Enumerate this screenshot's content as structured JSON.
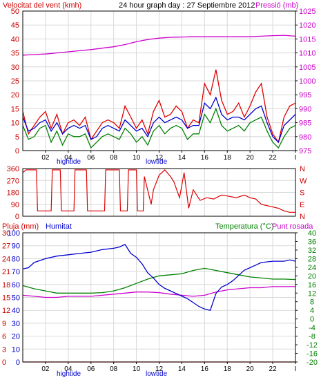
{
  "chart_data": [
    {
      "type": "line",
      "title": "24 hour graph day : 27 Septiembre 2012",
      "left_label": "Velocitat del vent (kmh)",
      "right_label": "Pressió (mb)",
      "x_ticks": [
        "02",
        "04",
        "06",
        "08",
        "10",
        "12",
        "14",
        "16",
        "18",
        "20",
        "22",
        "I"
      ],
      "tide_labels": [
        "hightide",
        "lowtide"
      ],
      "left_ticks": [
        "0",
        "5",
        "10",
        "15",
        "20",
        "25",
        "30",
        "35",
        "40",
        "45",
        "50"
      ],
      "right_ticks": [
        "975",
        "980",
        "985",
        "990",
        "995",
        "1000",
        "1005",
        "1010",
        "1015",
        "1020",
        "1025"
      ],
      "ylim_left": [
        0,
        50
      ],
      "ylim_right": [
        975,
        1025
      ],
      "grid": true,
      "series": [
        {
          "axis": "right",
          "color": "#cc00cc",
          "x": [
            0,
            1,
            2,
            3,
            4,
            5,
            6,
            7,
            8,
            9,
            10,
            11,
            12,
            13,
            14,
            15,
            16,
            17,
            18,
            19,
            20,
            21,
            22,
            23,
            24
          ],
          "values": [
            1009.2,
            1009.4,
            1009.6,
            1010.0,
            1010.4,
            1010.8,
            1011.2,
            1011.7,
            1012.2,
            1013.0,
            1014.0,
            1014.8,
            1015.3,
            1015.6,
            1015.7,
            1015.8,
            1015.8,
            1015.8,
            1015.8,
            1015.8,
            1015.8,
            1016.0,
            1016.2,
            1016.3,
            1016.0
          ]
        },
        {
          "axis": "left",
          "color": "#dd0000",
          "x": [
            0,
            0.5,
            1,
            1.5,
            2,
            2.5,
            3,
            3.5,
            4,
            4.5,
            5,
            5.5,
            6,
            6.5,
            7,
            7.5,
            8,
            8.5,
            9,
            9.5,
            10,
            10.5,
            11,
            11.5,
            12,
            12.5,
            13,
            13.5,
            14,
            14.5,
            15,
            15.5,
            16,
            16.5,
            17,
            17.5,
            18,
            18.5,
            19,
            19.5,
            20,
            20.5,
            21,
            21.5,
            22,
            22.5,
            23,
            23.5,
            24
          ],
          "values": [
            14,
            6,
            9,
            12,
            14,
            8,
            13,
            6,
            10,
            11,
            9,
            12,
            4,
            7,
            10,
            11,
            10,
            8,
            16,
            12,
            8,
            11,
            6,
            14,
            18,
            12,
            13,
            16,
            14,
            8,
            11,
            10,
            24,
            20,
            29,
            18,
            13,
            14,
            17,
            12,
            16,
            21,
            24,
            12,
            6,
            3,
            12,
            16,
            17
          ]
        },
        {
          "axis": "left",
          "color": "#0000cc",
          "x": [
            0,
            0.5,
            1,
            1.5,
            2,
            2.5,
            3,
            3.5,
            4,
            4.5,
            5,
            5.5,
            6,
            6.5,
            7,
            7.5,
            8,
            8.5,
            9,
            9.5,
            10,
            10.5,
            11,
            11.5,
            12,
            12.5,
            13,
            13.5,
            14,
            14.5,
            15,
            15.5,
            16,
            16.5,
            17,
            17.5,
            18,
            18.5,
            19,
            19.5,
            20,
            20.5,
            21,
            21.5,
            22,
            22.5,
            23,
            23.5,
            24
          ],
          "values": [
            12,
            7,
            8,
            10,
            11,
            7,
            10,
            6,
            8,
            9,
            8,
            9,
            4,
            5,
            8,
            9,
            8,
            7,
            11,
            9,
            7,
            8,
            5,
            10,
            12,
            10,
            11,
            12,
            11,
            8,
            9,
            9,
            17,
            15,
            19,
            13,
            11,
            12,
            12,
            11,
            13,
            15,
            16,
            10,
            5,
            3,
            9,
            11,
            13
          ]
        },
        {
          "axis": "left",
          "color": "#008000",
          "x": [
            0,
            0.5,
            1,
            1.5,
            2,
            2.5,
            3,
            3.5,
            4,
            4.5,
            5,
            5.5,
            6,
            6.5,
            7,
            7.5,
            8,
            8.5,
            9,
            9.5,
            10,
            10.5,
            11,
            11.5,
            12,
            12.5,
            13,
            13.5,
            14,
            14.5,
            15,
            15.5,
            16,
            16.5,
            17,
            17.5,
            18,
            18.5,
            19,
            19.5,
            20,
            20.5,
            21,
            21.5,
            22,
            22.5,
            23,
            23.5,
            24
          ],
          "values": [
            9,
            4,
            5,
            8,
            9,
            3,
            7,
            2,
            6,
            5,
            5,
            6,
            1,
            3,
            5,
            6,
            5,
            4,
            8,
            6,
            3,
            5,
            2,
            7,
            9,
            6,
            8,
            9,
            8,
            4,
            6,
            6,
            13,
            10,
            15,
            9,
            7,
            8,
            9,
            7,
            10,
            11,
            12,
            7,
            3,
            1,
            5,
            8,
            9
          ]
        }
      ]
    },
    {
      "type": "line",
      "title": "",
      "left_ticks": [
        "0",
        "90",
        "180",
        "270",
        "360"
      ],
      "right_labels": [
        "N",
        "W",
        "S",
        "E",
        "N"
      ],
      "ylim": [
        0,
        360
      ],
      "grid": true,
      "series": [
        {
          "name": "",
          "color": "#dd0000",
          "x": [
            0,
            0.3,
            0.7,
            1.2,
            1.3,
            2.5,
            2.6,
            3.3,
            3.4,
            4.5,
            4.6,
            5.6,
            5.7,
            7.2,
            7.3,
            8.5,
            8.6,
            9.2,
            9.3,
            10.0,
            10.1,
            10.6,
            10.7,
            11.3,
            11.5,
            12.0,
            12.5,
            13.0,
            13.3,
            13.8,
            14.2,
            14.6,
            15.0,
            15.6,
            16.2,
            16.8,
            17.5,
            18.2,
            18.8,
            19.5,
            20.0,
            20.5,
            21.0,
            21.5,
            22.0,
            22.5,
            23.0,
            23.5,
            24.0
          ],
          "values": [
            330,
            350,
            350,
            350,
            40,
            40,
            350,
            350,
            40,
            40,
            350,
            350,
            40,
            40,
            350,
            350,
            40,
            40,
            350,
            350,
            40,
            40,
            300,
            90,
            200,
            310,
            350,
            300,
            260,
            140,
            330,
            60,
            200,
            120,
            140,
            130,
            160,
            150,
            140,
            160,
            140,
            130,
            90,
            80,
            70,
            60,
            40,
            30,
            30
          ]
        }
      ]
    },
    {
      "type": "line",
      "title": "",
      "left_label_1": "Pluja (mm)",
      "left_label_2": "Humitat",
      "right_label_1": "Temperatura (°C)",
      "right_label_2": "Punt rosada",
      "left_ticks_rain": [
        "0",
        "3",
        "6",
        "9",
        "12",
        "15",
        "18",
        "21",
        "24",
        "27",
        "30"
      ],
      "left_ticks_hum": [
        "0",
        "10",
        "20",
        "30",
        "40",
        "50",
        "60",
        "70",
        "80",
        "90",
        "100"
      ],
      "right_ticks": [
        "-20",
        "-16",
        "-12",
        "-8",
        "-4",
        "0",
        "4",
        "8",
        "12",
        "16",
        "20",
        "24",
        "28",
        "32",
        "36",
        "40"
      ],
      "ylim_humidity": [
        0,
        100
      ],
      "ylim_temperature": [
        -20,
        40
      ],
      "grid": true,
      "series": [
        {
          "axis": "right",
          "color": "#008000",
          "x": [
            0,
            1,
            2,
            3,
            4,
            5,
            6,
            7,
            8,
            9,
            10,
            11,
            12,
            13,
            14,
            15,
            16,
            17,
            18,
            19,
            20,
            21,
            22,
            23,
            24
          ],
          "values": [
            15.5,
            14,
            13,
            12,
            12,
            12,
            12,
            12.2,
            13,
            14.5,
            16.5,
            18.5,
            20,
            20.5,
            21,
            22.5,
            23.5,
            22.5,
            21.5,
            20.5,
            19.5,
            19,
            18.5,
            18.5,
            18.3
          ]
        },
        {
          "axis": "right",
          "color": "#cc00cc",
          "x": [
            0,
            1,
            2,
            3,
            4,
            5,
            6,
            7,
            8,
            9,
            10,
            11,
            12,
            13,
            14,
            15,
            16,
            17,
            18,
            19,
            20,
            21,
            22,
            23,
            24
          ],
          "values": [
            11,
            10.5,
            10,
            10,
            10.5,
            10.5,
            10.5,
            11,
            11.5,
            12,
            12.5,
            12.5,
            12.2,
            11.5,
            11,
            10.5,
            11,
            12.5,
            13.5,
            14,
            14.5,
            14.5,
            15,
            15,
            15
          ]
        },
        {
          "axis": "left",
          "color": "#0000cc",
          "x": [
            0,
            0.5,
            1,
            2,
            3,
            4,
            5,
            6,
            7,
            8,
            8.5,
            9,
            9.5,
            10,
            10.5,
            11,
            11.5,
            12,
            12.5,
            13,
            13.5,
            14,
            14.5,
            15,
            15.5,
            16,
            16.5,
            17,
            17.5,
            18,
            18.5,
            19,
            19.5,
            20,
            20.5,
            21,
            22,
            23,
            23.5,
            24
          ],
          "values": [
            72,
            73,
            77,
            80,
            82,
            83,
            84,
            85,
            87,
            88,
            89,
            91,
            84,
            81,
            76,
            69,
            65,
            60,
            57,
            55,
            53,
            51,
            49,
            46,
            43,
            41,
            40,
            53,
            58,
            60,
            63,
            67,
            71,
            73,
            75,
            77,
            78,
            78,
            79,
            78
          ]
        },
        {
          "axis": "left",
          "color": "#dd0000",
          "x": [
            0,
            24
          ],
          "values": [
            0,
            0
          ]
        }
      ]
    }
  ]
}
